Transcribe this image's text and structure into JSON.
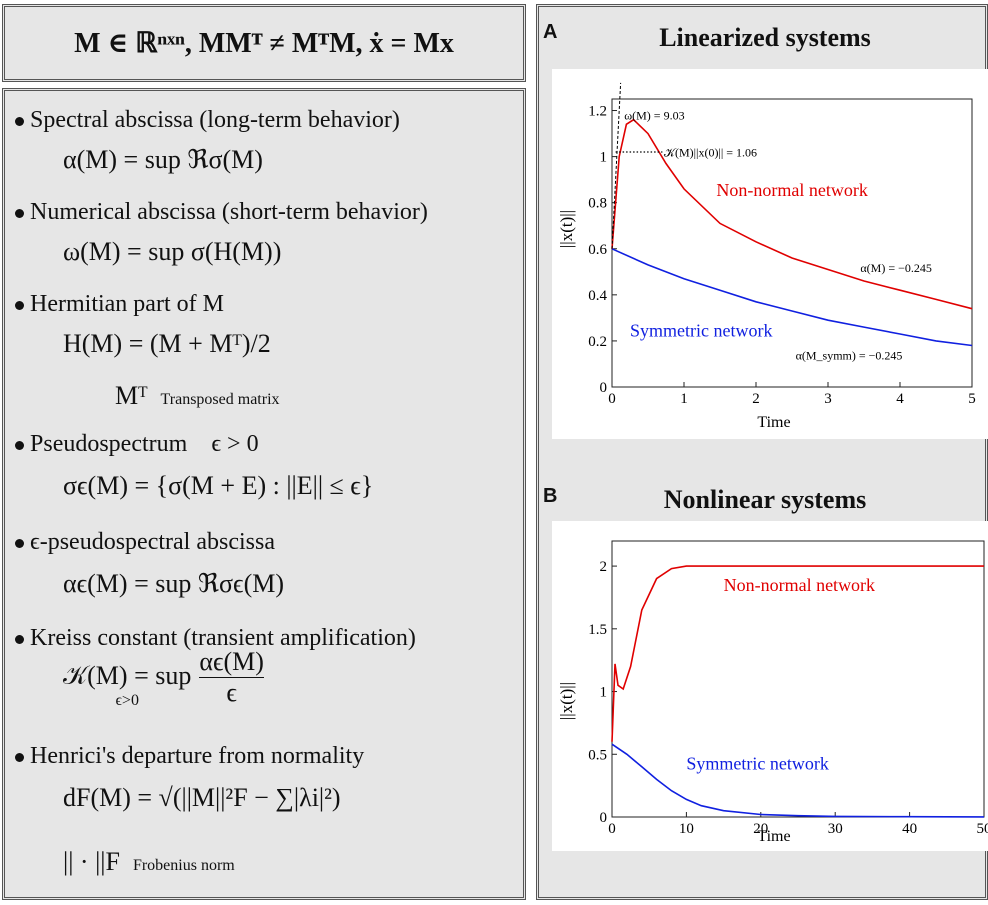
{
  "header_equation": "M ∈ ℝⁿˣⁿ, MMᵀ ≠ MᵀM, ẋ = Mx",
  "definitions": [
    {
      "label": "Spectral abscissa (long-term behavior)",
      "formula": "α(M) = sup ℜσ(M)"
    },
    {
      "label": "Numerical abscissa (short-term behavior)",
      "formula": "ω(M) = sup σ(H(M))"
    },
    {
      "label": "Hermitian part of M",
      "formula": "H(M) = (M + Mᵀ)/2",
      "note_symbol": "Mᵀ",
      "note": "Transposed matrix"
    },
    {
      "label": "Pseudospectrum",
      "label_extra": "ϵ > 0",
      "formula": "σϵ(M) = {σ(M + E) : ||E|| ≤ ϵ}"
    },
    {
      "label": "ϵ-pseudospectral abscissa",
      "formula": "αϵ(M) = sup ℜσϵ(M)"
    },
    {
      "label": "Kreiss constant (transient amplification)",
      "formula_lhs": "𝒦(M) = sup",
      "formula_sub": "ϵ>0",
      "formula_num": "αϵ(M)",
      "formula_den": "ϵ"
    },
    {
      "label": "Henrici's departure from normality",
      "formula": "dF(M) = √(||M||²F − ∑|λi|²)",
      "note_symbol": "|| · ||F",
      "note": "Frobenius norm"
    }
  ],
  "panel_a": {
    "letter": "A",
    "title": "Linearized systems",
    "chart_data": {
      "type": "line",
      "xlabel": "Time",
      "ylabel": "||x(t)||",
      "xlim": [
        0,
        5
      ],
      "ylim": [
        0,
        1.25
      ],
      "xticks": [
        "0",
        "1",
        "2",
        "3",
        "4",
        "5"
      ],
      "yticks": [
        "0",
        "0.2",
        "0.4",
        "0.6",
        "0.8",
        "1",
        "1.2"
      ],
      "series": [
        {
          "name": "Non-normal network",
          "color": "#e00000",
          "x": [
            0,
            0.1,
            0.2,
            0.3,
            0.5,
            0.75,
            1,
            1.5,
            2,
            2.5,
            3,
            3.5,
            4,
            4.5,
            5
          ],
          "y": [
            0.6,
            1.0,
            1.14,
            1.16,
            1.1,
            0.97,
            0.86,
            0.71,
            0.63,
            0.56,
            0.51,
            0.46,
            0.42,
            0.38,
            0.34
          ]
        },
        {
          "name": "Symmetric network",
          "color": "#1020e0",
          "x": [
            0,
            0.5,
            1,
            1.5,
            2,
            2.5,
            3,
            3.5,
            4,
            4.5,
            5
          ],
          "y": [
            0.6,
            0.53,
            0.47,
            0.42,
            0.37,
            0.33,
            0.29,
            0.26,
            0.23,
            0.2,
            0.18
          ]
        }
      ],
      "annotations": [
        "ω(M) = 9.03",
        "𝒦(M)||x(0)|| = 1.06",
        "α(M) = −0.245",
        "α(M_symm) = −0.245"
      ]
    }
  },
  "panel_b": {
    "letter": "B",
    "title": "Nonlinear systems",
    "chart_data": {
      "type": "line",
      "xlabel": "Time",
      "ylabel": "||x(t)||",
      "xlim": [
        0,
        50
      ],
      "ylim": [
        0,
        2.2
      ],
      "xticks": [
        "0",
        "10",
        "20",
        "30",
        "40",
        "50"
      ],
      "yticks": [
        "0",
        "0.5",
        "1",
        "1.5",
        "2"
      ],
      "series": [
        {
          "name": "Non-normal network",
          "color": "#e00000",
          "x": [
            0,
            0.4,
            0.8,
            1.5,
            2.5,
            4,
            6,
            8,
            10,
            15,
            20,
            30,
            40,
            50
          ],
          "y": [
            0.6,
            1.22,
            1.05,
            1.02,
            1.2,
            1.65,
            1.9,
            1.98,
            2.0,
            2.0,
            2.0,
            2.0,
            2.0,
            2.0
          ]
        },
        {
          "name": "Symmetric network",
          "color": "#1020e0",
          "x": [
            0,
            2,
            4,
            6,
            8,
            10,
            12,
            15,
            20,
            25,
            30,
            40,
            50
          ],
          "y": [
            0.58,
            0.5,
            0.4,
            0.3,
            0.21,
            0.14,
            0.09,
            0.05,
            0.02,
            0.01,
            0.005,
            0.002,
            0.001
          ]
        }
      ]
    }
  }
}
